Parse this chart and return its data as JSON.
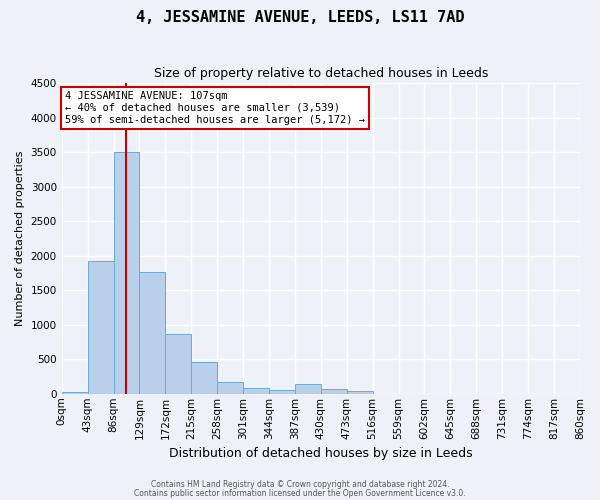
{
  "title": "4, JESSAMINE AVENUE, LEEDS, LS11 7AD",
  "subtitle": "Size of property relative to detached houses in Leeds",
  "xlabel": "Distribution of detached houses by size in Leeds",
  "ylabel": "Number of detached properties",
  "footer_lines": [
    "Contains HM Land Registry data © Crown copyright and database right 2024.",
    "Contains public sector information licensed under the Open Government Licence v3.0."
  ],
  "bin_labels": [
    "0sqm",
    "43sqm",
    "86sqm",
    "129sqm",
    "172sqm",
    "215sqm",
    "258sqm",
    "301sqm",
    "344sqm",
    "387sqm",
    "430sqm",
    "473sqm",
    "516sqm",
    "559sqm",
    "602sqm",
    "645sqm",
    "688sqm",
    "731sqm",
    "774sqm",
    "817sqm",
    "860sqm"
  ],
  "bar_heights": [
    30,
    1920,
    3500,
    1770,
    870,
    460,
    175,
    90,
    50,
    145,
    70,
    35,
    0,
    0,
    0,
    0,
    0,
    0,
    0,
    0
  ],
  "bar_color": "#b8d0ea",
  "bar_edge_color": "#6aaad4",
  "bg_color": "#eef2f8",
  "grid_color": "#ffffff",
  "ylim": [
    0,
    4500
  ],
  "yticks": [
    0,
    500,
    1000,
    1500,
    2000,
    2500,
    3000,
    3500,
    4000,
    4500
  ],
  "bin_width": 43,
  "vline_x": 107,
  "vline_color": "#cc0000",
  "annotation_text": "4 JESSAMINE AVENUE: 107sqm\n← 40% of detached houses are smaller (3,539)\n59% of semi-detached houses are larger (5,172) →",
  "annotation_box_color": "#ffffff",
  "annotation_border_color": "#cc0000",
  "title_fontsize": 11,
  "subtitle_fontsize": 9,
  "ylabel_fontsize": 8,
  "xlabel_fontsize": 9,
  "footer_fontsize": 5.5,
  "tick_fontsize": 7.5,
  "annot_fontsize": 7.5
}
